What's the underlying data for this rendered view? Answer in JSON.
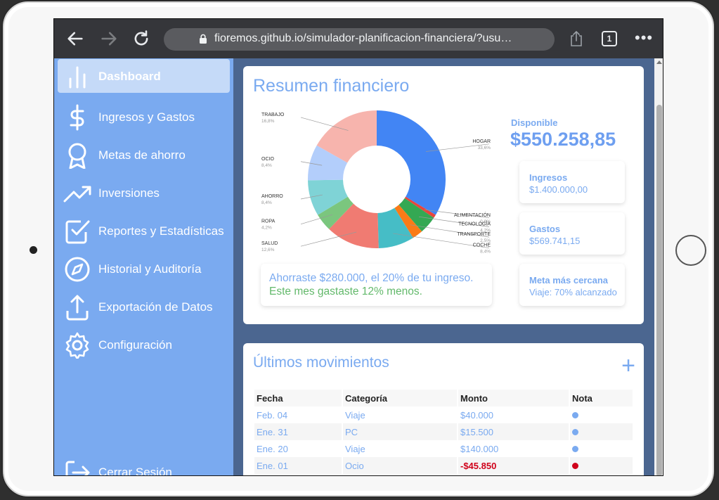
{
  "browser": {
    "url": "fioremos.github.io/simulador-planificacion-financiera/?usu…",
    "tab_count": "1",
    "more": "•••"
  },
  "sidebar": {
    "items": [
      {
        "label": "Dashboard",
        "icon": "bar-chart-icon",
        "active": true
      },
      {
        "label": "Ingresos y Gastos",
        "icon": "dollar-icon"
      },
      {
        "label": "Metas de ahorro",
        "icon": "award-icon"
      },
      {
        "label": "Inversiones",
        "icon": "trending-up-icon"
      },
      {
        "label": "Reportes y Estadísticas",
        "icon": "check-square-icon"
      },
      {
        "label": "Historial y Auditoría",
        "icon": "compass-icon"
      },
      {
        "label": "Exportación de Datos",
        "icon": "upload-icon"
      },
      {
        "label": "Configuración",
        "icon": "gear-icon"
      }
    ],
    "logout": "Cerrar Sesión"
  },
  "summary": {
    "title": "Resumen financiero",
    "available_label": "Disponible",
    "available_value": "$550.258,85",
    "income_label": "Ingresos",
    "income_value": "$1.400.000,00",
    "expenses_label": "Gastos",
    "expenses_value": "$569.741,15",
    "goal_label": "Meta más cercana",
    "goal_value": "Viaje: 70% alcanzado",
    "message_savings": "Ahorraste $280.000, el 20% de tu ingreso.",
    "message_spending": "Este mes gastaste 12% menos."
  },
  "chart_data": {
    "type": "pie",
    "donut": true,
    "categories": [
      "HOGAR",
      "ALIMENTACIÓN",
      "TECNOLOGÍA",
      "TRANSPORTE",
      "COCHE",
      "SALUD",
      "ROPA",
      "AHORRO",
      "OCIO",
      "TRABAJO"
    ],
    "values": [
      33.6,
      0.8,
      4.2,
      2.5,
      8.4,
      12.6,
      4.2,
      8.4,
      8.4,
      16.8
    ],
    "labels": [
      "33,6%",
      "0,8%",
      "4,2%",
      "2,5%",
      "8,4%",
      "12,6%",
      "4,2%",
      "8,4%",
      "8,4%",
      "16,8%"
    ],
    "colors": [
      "#4285f4",
      "#e8453c",
      "#34a853",
      "#fa7b17",
      "#46bdc6",
      "#f07b72",
      "#7bc67e",
      "#7fd3d6",
      "#b3cefb",
      "#f7b4ad"
    ]
  },
  "movements": {
    "title": "Últimos movimientos",
    "add_label": "+",
    "columns": [
      "Fecha",
      "Categoría",
      "Monto",
      "Nota"
    ],
    "rows": [
      {
        "date": "Feb. 04",
        "category": "Viaje",
        "amount": "$40.000",
        "negative": false
      },
      {
        "date": "Ene. 31",
        "category": "PC",
        "amount": "$15.500",
        "negative": false
      },
      {
        "date": "Ene. 20",
        "category": "Viaje",
        "amount": "$140.000",
        "negative": false
      },
      {
        "date": "Ene. 01",
        "category": "Ocio",
        "amount": "-$45.850",
        "negative": true
      }
    ]
  }
}
